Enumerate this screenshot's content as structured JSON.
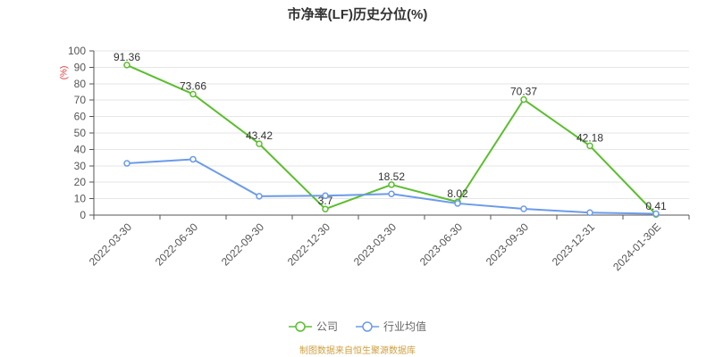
{
  "chart_data": {
    "type": "line",
    "title": "市净率(LF)历史分位(%)",
    "ylabel": "(%)",
    "xlabel": "",
    "ylim": [
      0,
      100
    ],
    "ytick_step": 10,
    "grid": true,
    "legend_position": "bottom",
    "source_note": "制图数据来自恒生聚源数据库",
    "categories": [
      "2022-03-30",
      "2022-06-30",
      "2022-09-30",
      "2022-12-30",
      "2023-03-30",
      "2023-06-30",
      "2023-09-30",
      "2023-12-31",
      "2024-01-30E"
    ],
    "series": [
      {
        "name": "公司",
        "color": "#5bbe2f",
        "data_labels": true,
        "values": [
          91.36,
          73.66,
          43.42,
          3.7,
          18.52,
          8.02,
          70.37,
          42.18,
          0.41
        ],
        "labels": [
          "91.36",
          "73.66",
          "43.42",
          "3.7",
          "18.52",
          "8.02",
          "70.37",
          "42.18",
          "0.41"
        ]
      },
      {
        "name": "行业均值",
        "color": "#6b9bea",
        "data_labels": false,
        "values": [
          31.5,
          34.0,
          11.5,
          11.8,
          12.9,
          7.1,
          3.8,
          1.5,
          0.8
        ],
        "labels": []
      }
    ],
    "colors": {
      "title": "#333333",
      "axis_line": "#555555",
      "grid_line": "#e6e6e6",
      "tick_label": "#555555",
      "data_label": "#333333",
      "ylabel": "#e03131",
      "legend_text": "#666666",
      "source_note": "#cfa041",
      "background": "#ffffff"
    }
  }
}
